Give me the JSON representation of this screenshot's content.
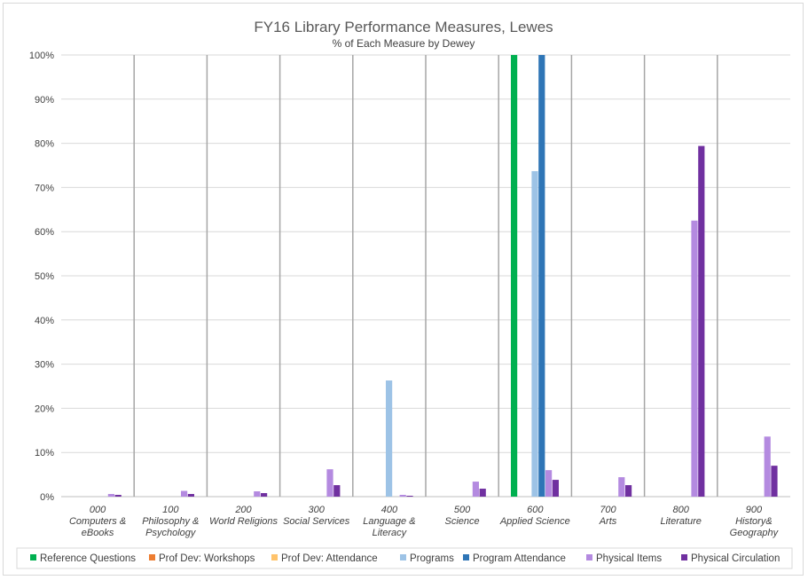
{
  "chart_data": {
    "type": "bar",
    "title": "FY16 Library Performance Measures, Lewes",
    "subtitle": "% of Each Measure by Dewey",
    "xlabel": "",
    "ylabel": "",
    "ylim": [
      0,
      100
    ],
    "yticks": [
      "0%",
      "10%",
      "20%",
      "30%",
      "40%",
      "50%",
      "60%",
      "70%",
      "80%",
      "90%",
      "100%"
    ],
    "grid": true,
    "legend_position": "bottom",
    "categories": [
      [
        "000",
        "Computers &",
        "eBooks"
      ],
      [
        "100",
        "Philosophy &",
        "Psychology"
      ],
      [
        "200",
        "World Religions"
      ],
      [
        "300",
        "Social Services"
      ],
      [
        "400",
        "Language &",
        "Literacy"
      ],
      [
        "500",
        "Science"
      ],
      [
        "600",
        "Applied Science"
      ],
      [
        "700",
        "Arts"
      ],
      [
        "800",
        "Literature"
      ],
      [
        "900",
        "History&",
        "Geography"
      ]
    ],
    "series": [
      {
        "name": "Reference Questions",
        "color": "#00b050",
        "values": [
          0,
          0,
          0,
          0,
          0,
          0,
          100,
          0,
          0,
          0
        ]
      },
      {
        "name": "Prof Dev: Workshops",
        "color": "#ed7d31",
        "values": [
          0,
          0,
          0,
          0,
          0,
          0,
          0,
          0,
          0,
          0
        ]
      },
      {
        "name": "Prof Dev: Attendance",
        "color": "#ffc36b",
        "values": [
          0,
          0,
          0,
          0,
          0,
          0,
          0,
          0,
          0,
          0
        ]
      },
      {
        "name": "Programs",
        "color": "#9dc3e6",
        "values": [
          0,
          0,
          0,
          0,
          26.3,
          0,
          73.7,
          0,
          0,
          0
        ]
      },
      {
        "name": "Program Attendance",
        "color": "#2e75b6",
        "values": [
          0,
          0,
          0,
          0,
          0,
          0,
          100,
          0,
          0,
          0
        ]
      },
      {
        "name": "Physical Items",
        "color": "#b48ae0",
        "values": [
          0.6,
          1.3,
          1.2,
          6.2,
          0.4,
          3.4,
          6.0,
          4.4,
          62.5,
          13.6
        ]
      },
      {
        "name": "Physical Circulation",
        "color": "#7030a0",
        "values": [
          0.4,
          0.6,
          0.8,
          2.6,
          0.2,
          1.8,
          3.8,
          2.6,
          79.4,
          7.0
        ]
      }
    ]
  }
}
